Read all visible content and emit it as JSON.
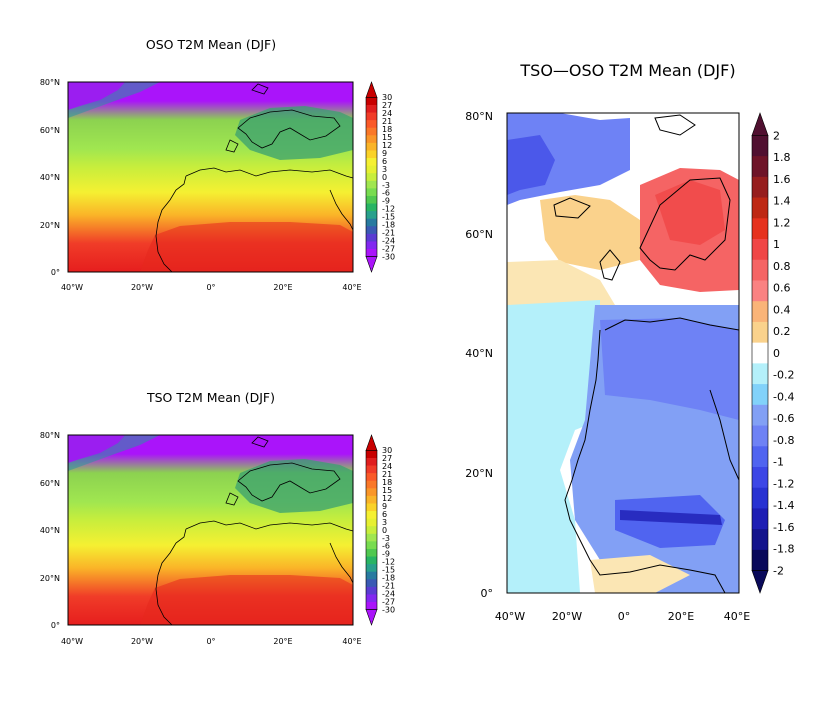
{
  "panels": {
    "osoa": {
      "title": "OSO T2M Mean (DJF)"
    },
    "tso": {
      "title": "TSO T2M Mean (DJF)"
    },
    "diff": {
      "title": "TSO—OSO T2M Mean (DJF)"
    }
  },
  "chart_data": [
    {
      "type": "heatmap",
      "title": "OSO T2M Mean (DJF)",
      "x_ticks": [
        "40°W",
        "20°W",
        "0°",
        "20°E",
        "40°E"
      ],
      "y_ticks": [
        "0°",
        "20°N",
        "40°N",
        "60°N",
        "80°N"
      ],
      "xlim": [
        -40,
        40
      ],
      "ylim": [
        0,
        80
      ],
      "colorbar_labels": [
        "30",
        "27",
        "24",
        "21",
        "18",
        "15",
        "12",
        "9",
        "6",
        "3",
        "0",
        "-3",
        "-6",
        "-9",
        "-12",
        "-15",
        "-18",
        "-21",
        "-24",
        "-27",
        "-30"
      ],
      "colorbar_colors": [
        "#c80000",
        "#e01e1e",
        "#f03c28",
        "#fa5a28",
        "#fa7828",
        "#fa9628",
        "#fab428",
        "#fad228",
        "#f5f032",
        "#e6f032",
        "#c8ee3c",
        "#a0e650",
        "#78dc50",
        "#50c850",
        "#28b464",
        "#28a08c",
        "#287aa0",
        "#3a5ab4",
        "#5a3cd2",
        "#8228f0",
        "#aa14fa"
      ],
      "colorbar_order": "top-to-bottom"
    },
    {
      "type": "heatmap",
      "title": "TSO T2M Mean (DJF)",
      "x_ticks": [
        "40°W",
        "20°W",
        "0°",
        "20°E",
        "40°E"
      ],
      "y_ticks": [
        "0°",
        "20°N",
        "40°N",
        "60°N",
        "80°N"
      ],
      "xlim": [
        -40,
        40
      ],
      "ylim": [
        0,
        80
      ],
      "colorbar_labels": [
        "30",
        "27",
        "24",
        "21",
        "18",
        "15",
        "12",
        "9",
        "6",
        "3",
        "0",
        "-3",
        "-6",
        "-9",
        "-12",
        "-15",
        "-18",
        "-21",
        "-24",
        "-27",
        "-30"
      ],
      "colorbar_colors": [
        "#c80000",
        "#e01e1e",
        "#f03c28",
        "#fa5a28",
        "#fa7828",
        "#fa9628",
        "#fab428",
        "#fad228",
        "#f5f032",
        "#e6f032",
        "#c8ee3c",
        "#a0e650",
        "#78dc50",
        "#50c850",
        "#28b464",
        "#28a08c",
        "#287aa0",
        "#3a5ab4",
        "#5a3cd2",
        "#8228f0",
        "#aa14fa"
      ],
      "colorbar_order": "top-to-bottom"
    },
    {
      "type": "heatmap",
      "title": "TSO—OSO T2M Mean (DJF)",
      "x_ticks": [
        "40°W",
        "20°W",
        "0°",
        "20°E",
        "40°E"
      ],
      "y_ticks": [
        "0°",
        "20°N",
        "40°N",
        "60°N",
        "80°N"
      ],
      "xlim": [
        -40,
        40
      ],
      "ylim": [
        0,
        80
      ],
      "colorbar_labels": [
        "2",
        "1.8",
        "1.6",
        "1.4",
        "1.2",
        "1",
        "0.8",
        "0.6",
        "0.4",
        "0.2",
        "0",
        "-0.2",
        "-0.4",
        "-0.6",
        "-0.8",
        "-1",
        "-1.2",
        "-1.4",
        "-1.6",
        "-1.8",
        "-2"
      ],
      "colorbar_colors": [
        "#501030",
        "#6e1428",
        "#961e1e",
        "#be2814",
        "#e6321e",
        "#f04646",
        "#f56464",
        "#fa8282",
        "#fab478",
        "#fad28c",
        "#ffffff",
        "#b4f0fa",
        "#82d2fa",
        "#82a0f5",
        "#6e82f5",
        "#5064f0",
        "#3c46e6",
        "#2832d2",
        "#1e1eb4",
        "#14148c",
        "#0a0a5a"
      ],
      "colorbar_order": "top-to-bottom"
    }
  ]
}
